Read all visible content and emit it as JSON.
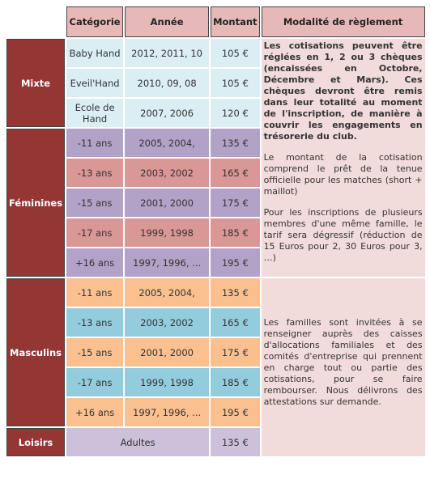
{
  "header": {
    "columns": [
      "Catégorie",
      "Année",
      "Montant",
      "Modalité de règlement"
    ]
  },
  "groups": [
    {
      "name": "Mixte",
      "rows": [
        {
          "category": "Baby Hand",
          "year": "2012, 2011, 10",
          "amount": "105 €"
        },
        {
          "category": "Eveil'Hand",
          "year": "2010, 09, 08",
          "amount": "105 €"
        },
        {
          "category": "Ecole de Hand",
          "year": "2007, 2006",
          "amount": "120 €"
        }
      ]
    },
    {
      "name": "Féminines",
      "rows": [
        {
          "category": "-11 ans",
          "year": "2005, 2004,",
          "amount": "135 €"
        },
        {
          "category": "-13 ans",
          "year": "2003, 2002",
          "amount": "165 €"
        },
        {
          "category": "-15 ans",
          "year": "2001, 2000",
          "amount": "175 €"
        },
        {
          "category": "-17 ans",
          "year": "1999, 1998",
          "amount": "185 €"
        },
        {
          "category": "+16 ans",
          "year": "1997, 1996, ...",
          "amount": "195 €"
        }
      ]
    },
    {
      "name": "Masculins",
      "rows": [
        {
          "category": "-11 ans",
          "year": "2005, 2004,",
          "amount": "135 €"
        },
        {
          "category": "-13 ans",
          "year": "2003, 2002",
          "amount": "165 €"
        },
        {
          "category": "-15 ans",
          "year": "2001, 2000",
          "amount": "175 €"
        },
        {
          "category": "-17 ans",
          "year": "1999, 1998",
          "amount": "185 €"
        },
        {
          "category": "+16 ans",
          "year": "1997, 1996, ...",
          "amount": "195 €"
        }
      ]
    },
    {
      "name": "Loisirs",
      "rows": [
        {
          "category": "Adultes",
          "amount": "135 €"
        }
      ]
    }
  ],
  "modalite": {
    "top": [
      "Les cotisations peuvent être réglées en 1, 2 ou 3 chèques (encaissées en Octobre, Décembre et Mars). Ces chèques devront être remis dans leur totalité au moment de l'inscription, de manière à couvrir les engagements en trésorerie du club.",
      "Le montant de la cotisation comprend le prêt de la tenue officielle pour les matches (short + maillot)",
      "Pour les inscriptions de plusieurs membres d'une même famille, le tarif sera dégressif (réduction de 15 Euros pour 2, 30 Euros pour 3, …)"
    ],
    "bottom": [
      "Les familles sont invitées à se renseigner auprès des caisses d'allocations familiales et des comités d'entreprise qui prennent en charge tout ou partie des cotisations, pour se faire rembourser. Nous délivrons des attestations sur demande."
    ]
  }
}
